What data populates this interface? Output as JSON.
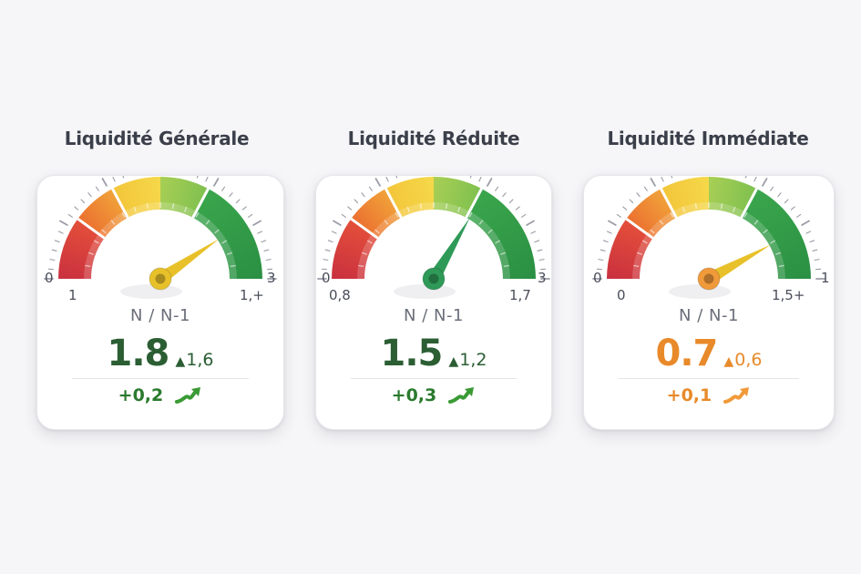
{
  "colors": {
    "red": "#d63a3a",
    "orange": "#ee8a2a",
    "yellow": "#f3cc35",
    "lightgreen": "#86c34f",
    "green": "#2f9a48",
    "darkgreen_text": "#2b5e33",
    "orange_text": "#e88a2a",
    "arrow_green": "#3a9a34",
    "arrow_orange": "#f09a3a"
  },
  "widgets": [
    {
      "title": "Liquidité Générale",
      "gauge": {
        "min_label": "0",
        "max_label": "3",
        "left_sub_label": "1",
        "right_sub_label": "1,+",
        "needle_position": 0.81,
        "needle_color": "#e8c12a",
        "hub_color": "#e8c12a"
      },
      "nn_label": "N / N-1",
      "value": "1.8",
      "previous": "1,6",
      "previous_arrow": "▲",
      "delta": "+0,2",
      "value_color": "#2b5e33",
      "delta_color": "#2b7a2e",
      "trend_icon": "trend-up-icon"
    },
    {
      "title": "Liquidité Réduite",
      "gauge": {
        "min_label": "0",
        "max_label": "3",
        "left_sub_label": "0,8",
        "right_sub_label": "1,7",
        "needle_position": 0.67,
        "needle_color": "#2f9a58",
        "hub_color": "#2f9a58"
      },
      "nn_label": "N / N-1",
      "value": "1.5",
      "previous": "1,2",
      "previous_arrow": "▲",
      "delta": "+0,3",
      "value_color": "#2b5e33",
      "delta_color": "#2b7a2e",
      "trend_icon": "trend-up-icon"
    },
    {
      "title": "Liquidité Immédiate",
      "gauge": {
        "min_label": "0",
        "max_label": "1",
        "left_sub_label": "0",
        "right_sub_label": "1,5+",
        "needle_position": 0.84,
        "needle_color": "#e8c12a",
        "hub_color": "#f09a3a"
      },
      "nn_label": "N / N-1",
      "value": "0.7",
      "previous": "0,6",
      "previous_arrow": "▲",
      "delta": "+0,1",
      "value_color": "#e88a2a",
      "delta_color": "#e88a2a",
      "trend_icon": "trend-up-icon"
    }
  ]
}
